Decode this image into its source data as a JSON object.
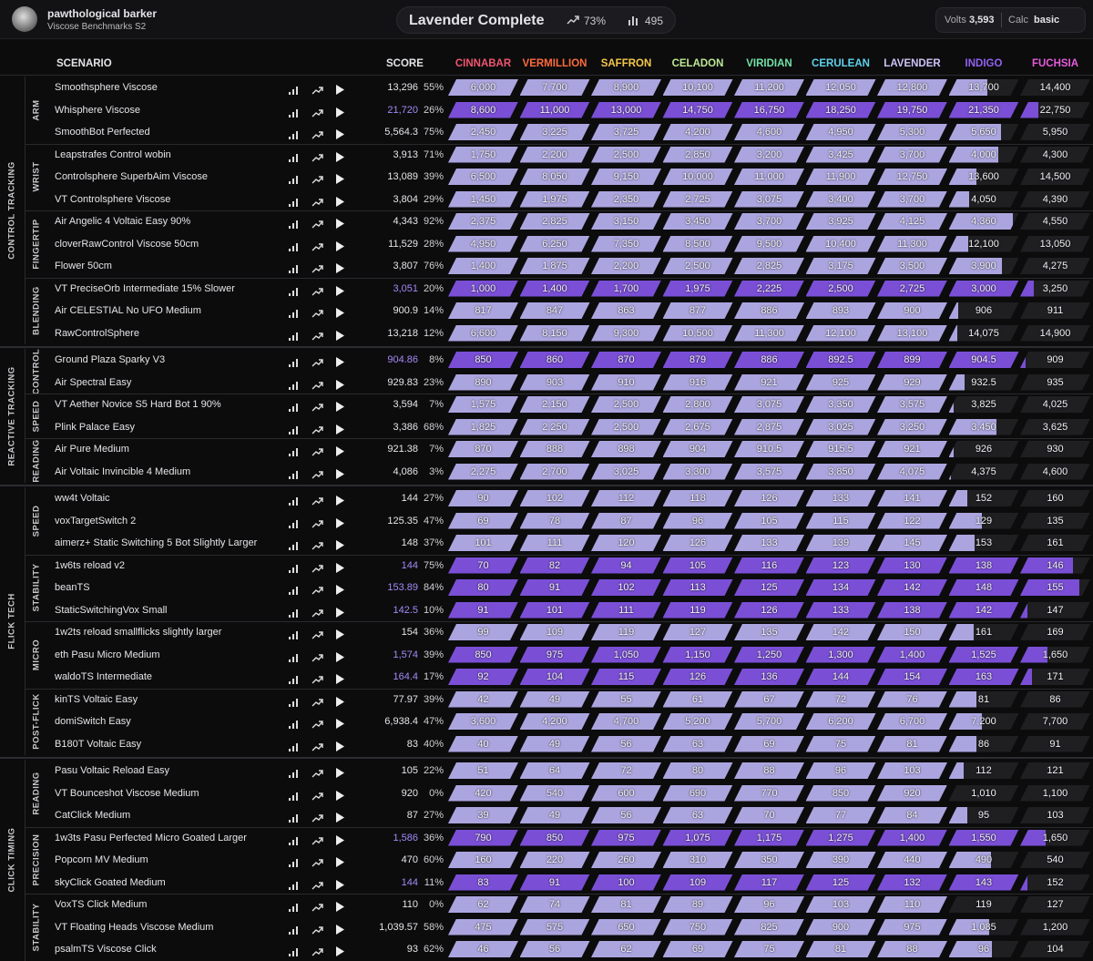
{
  "header": {
    "user_name": "pawthological barker",
    "benchmark": "Viscose Benchmarks S2",
    "status": "Lavender Complete",
    "progress": "73%",
    "energy": "495",
    "volts_label": "Volts",
    "volts": "3,593",
    "calc_label": "Calc",
    "calc": "basic"
  },
  "table": {
    "scenario_header": "SCENARIO",
    "score_header": "SCORE",
    "ranks": [
      {
        "name": "CINNABAR",
        "color": "#f0566e"
      },
      {
        "name": "VERMILLION",
        "color": "#ff6b3d"
      },
      {
        "name": "SAFFRON",
        "color": "#f5c84a"
      },
      {
        "name": "CELADON",
        "color": "#bde893"
      },
      {
        "name": "VIRIDIAN",
        "color": "#72e3a6"
      },
      {
        "name": "CERULEAN",
        "color": "#5fd3ec"
      },
      {
        "name": "LAVENDER",
        "color": "#cfc3f7"
      },
      {
        "name": "INDIGO",
        "color": "#9262f2"
      },
      {
        "name": "FUCHSIA",
        "color": "#e55cdb"
      }
    ],
    "categories": [
      {
        "name": "CONTROL TRACKING",
        "groups": [
          {
            "name": "ARM",
            "rows": [
              {
                "scenario": "Smoothsphere Viscose",
                "score": "13,296",
                "progress": "55%",
                "thresholds": [
                  "6,000",
                  "7,700",
                  "8,900",
                  "10,100",
                  "11,200",
                  "12,050",
                  "12,800",
                  "13,700",
                  "14,400"
                ]
              },
              {
                "scenario": "Whisphere Viscose",
                "score": "21,720",
                "progress": "26%",
                "thresholds": [
                  "8,600",
                  "11,000",
                  "13,000",
                  "14,750",
                  "16,750",
                  "18,250",
                  "19,750",
                  "21,350",
                  "22,750"
                ]
              },
              {
                "scenario": "SmoothBot Perfected",
                "score": "5,564.3",
                "progress": "75%",
                "thresholds": [
                  "2,450",
                  "3,225",
                  "3,725",
                  "4,200",
                  "4,600",
                  "4,950",
                  "5,300",
                  "5,650",
                  "5,950"
                ]
              }
            ]
          },
          {
            "name": "WRIST",
            "rows": [
              {
                "scenario": "Leapstrafes Control wobin",
                "score": "3,913",
                "progress": "71%",
                "thresholds": [
                  "1,750",
                  "2,200",
                  "2,500",
                  "2,850",
                  "3,200",
                  "3,425",
                  "3,700",
                  "4,000",
                  "4,300"
                ]
              },
              {
                "scenario": "Controlsphere SuperbAim Viscose",
                "score": "13,089",
                "progress": "39%",
                "thresholds": [
                  "6,500",
                  "8,050",
                  "9,150",
                  "10,000",
                  "11,000",
                  "11,900",
                  "12,750",
                  "13,600",
                  "14,500"
                ]
              },
              {
                "scenario": "VT Controlsphere Viscose",
                "score": "3,804",
                "progress": "29%",
                "thresholds": [
                  "1,450",
                  "1,975",
                  "2,350",
                  "2,725",
                  "3,075",
                  "3,400",
                  "3,700",
                  "4,050",
                  "4,390"
                ]
              }
            ]
          },
          {
            "name": "FINGERTIP",
            "rows": [
              {
                "scenario": "Air Angelic 4 Voltaic Easy 90%",
                "score": "4,343",
                "progress": "92%",
                "thresholds": [
                  "2,375",
                  "2,825",
                  "3,150",
                  "3,450",
                  "3,700",
                  "3,925",
                  "4,125",
                  "4,360",
                  "4,550"
                ]
              },
              {
                "scenario": "cloverRawControl Viscose 50cm",
                "score": "11,529",
                "progress": "28%",
                "thresholds": [
                  "4,950",
                  "6,250",
                  "7,350",
                  "8,500",
                  "9,500",
                  "10,400",
                  "11,300",
                  "12,100",
                  "13,050"
                ]
              },
              {
                "scenario": "Flower 50cm",
                "score": "3,807",
                "progress": "76%",
                "thresholds": [
                  "1,400",
                  "1,875",
                  "2,200",
                  "2,500",
                  "2,825",
                  "3,175",
                  "3,500",
                  "3,900",
                  "4,275"
                ]
              }
            ]
          },
          {
            "name": "BLENDING",
            "rows": [
              {
                "scenario": "VT PreciseOrb Intermediate 15% Slower",
                "score": "3,051",
                "progress": "20%",
                "thresholds": [
                  "1,000",
                  "1,400",
                  "1,700",
                  "1,975",
                  "2,225",
                  "2,500",
                  "2,725",
                  "3,000",
                  "3,250"
                ]
              },
              {
                "scenario": "Air CELESTIAL No UFO Medium",
                "score": "900.9",
                "progress": "14%",
                "thresholds": [
                  "817",
                  "847",
                  "863",
                  "877",
                  "886",
                  "893",
                  "900",
                  "906",
                  "911"
                ]
              },
              {
                "scenario": "RawControlSphere",
                "score": "13,218",
                "progress": "12%",
                "thresholds": [
                  "6,600",
                  "8,150",
                  "9,300",
                  "10,500",
                  "11,300",
                  "12,100",
                  "13,100",
                  "14,075",
                  "14,900"
                ]
              }
            ]
          }
        ]
      },
      {
        "name": "REACTIVE TRACKING",
        "groups": [
          {
            "name": "CONTROL",
            "rows": [
              {
                "scenario": "Ground Plaza Sparky V3",
                "score": "904.86",
                "progress": "8%",
                "thresholds": [
                  "850",
                  "860",
                  "870",
                  "879",
                  "886",
                  "892.5",
                  "899",
                  "904.5",
                  "909"
                ]
              },
              {
                "scenario": "Air Spectral Easy",
                "score": "929.83",
                "progress": "23%",
                "thresholds": [
                  "890",
                  "903",
                  "910",
                  "916",
                  "921",
                  "925",
                  "929",
                  "932.5",
                  "935"
                ]
              }
            ]
          },
          {
            "name": "SPEED",
            "rows": [
              {
                "scenario": "VT Aether Novice S5 Hard Bot 1 90%",
                "score": "3,594",
                "progress": "7%",
                "thresholds": [
                  "1,575",
                  "2,150",
                  "2,500",
                  "2,800",
                  "3,075",
                  "3,350",
                  "3,575",
                  "3,825",
                  "4,025"
                ]
              },
              {
                "scenario": "Plink Palace Easy",
                "score": "3,386",
                "progress": "68%",
                "thresholds": [
                  "1,825",
                  "2,250",
                  "2,500",
                  "2,675",
                  "2,875",
                  "3,025",
                  "3,250",
                  "3,450",
                  "3,625"
                ]
              }
            ]
          },
          {
            "name": "READING",
            "rows": [
              {
                "scenario": "Air Pure Medium",
                "score": "921.38",
                "progress": "7%",
                "thresholds": [
                  "870",
                  "888",
                  "898",
                  "904",
                  "910.5",
                  "915.5",
                  "921",
                  "926",
                  "930"
                ]
              },
              {
                "scenario": "Air Voltaic Invincible 4 Medium",
                "score": "4,086",
                "progress": "3%",
                "thresholds": [
                  "2,275",
                  "2,700",
                  "3,025",
                  "3,300",
                  "3,575",
                  "3,850",
                  "4,075",
                  "4,375",
                  "4,600"
                ]
              }
            ]
          }
        ]
      },
      {
        "name": "FLICK TECH",
        "groups": [
          {
            "name": "SPEED",
            "rows": [
              {
                "scenario": "ww4t Voltaic",
                "score": "144",
                "progress": "27%",
                "thresholds": [
                  "90",
                  "102",
                  "112",
                  "118",
                  "126",
                  "133",
                  "141",
                  "152",
                  "160"
                ]
              },
              {
                "scenario": "voxTargetSwitch 2",
                "score": "125.35",
                "progress": "47%",
                "thresholds": [
                  "69",
                  "78",
                  "87",
                  "96",
                  "105",
                  "115",
                  "122",
                  "129",
                  "135"
                ]
              },
              {
                "scenario": "aimerz+ Static Switching 5 Bot Slightly Larger",
                "score": "148",
                "progress": "37%",
                "thresholds": [
                  "101",
                  "111",
                  "120",
                  "126",
                  "133",
                  "139",
                  "145",
                  "153",
                  "161"
                ]
              }
            ]
          },
          {
            "name": "STABILITY",
            "rows": [
              {
                "scenario": "1w6ts reload v2",
                "score": "144",
                "progress": "75%",
                "thresholds": [
                  "70",
                  "82",
                  "94",
                  "105",
                  "116",
                  "123",
                  "130",
                  "138",
                  "146"
                ]
              },
              {
                "scenario": "beanTS",
                "score": "153.89",
                "progress": "84%",
                "thresholds": [
                  "80",
                  "91",
                  "102",
                  "113",
                  "125",
                  "134",
                  "142",
                  "148",
                  "155"
                ]
              },
              {
                "scenario": "StaticSwitchingVox Small",
                "score": "142.5",
                "progress": "10%",
                "thresholds": [
                  "91",
                  "101",
                  "111",
                  "119",
                  "126",
                  "133",
                  "138",
                  "142",
                  "147"
                ]
              }
            ]
          },
          {
            "name": "MICRO",
            "rows": [
              {
                "scenario": "1w2ts reload smallflicks slightly larger",
                "score": "154",
                "progress": "36%",
                "thresholds": [
                  "99",
                  "109",
                  "119",
                  "127",
                  "135",
                  "142",
                  "150",
                  "161",
                  "169"
                ]
              },
              {
                "scenario": "eth Pasu Micro Medium",
                "score": "1,574",
                "progress": "39%",
                "thresholds": [
                  "850",
                  "975",
                  "1,050",
                  "1,150",
                  "1,250",
                  "1,300",
                  "1,400",
                  "1,525",
                  "1,650"
                ]
              },
              {
                "scenario": "waldoTS Intermediate",
                "score": "164.4",
                "progress": "17%",
                "thresholds": [
                  "92",
                  "104",
                  "115",
                  "126",
                  "136",
                  "144",
                  "154",
                  "163",
                  "171"
                ]
              }
            ]
          },
          {
            "name": "POST-FLICK",
            "rows": [
              {
                "scenario": "kinTS Voltaic Easy",
                "score": "77.97",
                "progress": "39%",
                "thresholds": [
                  "42",
                  "49",
                  "55",
                  "61",
                  "67",
                  "72",
                  "76",
                  "81",
                  "86"
                ]
              },
              {
                "scenario": "domiSwitch Easy",
                "score": "6,938.4",
                "progress": "47%",
                "thresholds": [
                  "3,600",
                  "4,200",
                  "4,700",
                  "5,200",
                  "5,700",
                  "6,200",
                  "6,700",
                  "7,200",
                  "7,700"
                ]
              },
              {
                "scenario": "B180T Voltaic Easy",
                "score": "83",
                "progress": "40%",
                "thresholds": [
                  "40",
                  "49",
                  "56",
                  "63",
                  "69",
                  "75",
                  "81",
                  "86",
                  "91"
                ]
              }
            ]
          }
        ]
      },
      {
        "name": "CLICK TIMING",
        "groups": [
          {
            "name": "READING",
            "rows": [
              {
                "scenario": "Pasu Voltaic Reload Easy",
                "score": "105",
                "progress": "22%",
                "thresholds": [
                  "51",
                  "64",
                  "72",
                  "80",
                  "88",
                  "96",
                  "103",
                  "112",
                  "121"
                ]
              },
              {
                "scenario": "VT Bounceshot Viscose Medium",
                "score": "920",
                "progress": "0%",
                "thresholds": [
                  "420",
                  "540",
                  "600",
                  "690",
                  "770",
                  "850",
                  "920",
                  "1,010",
                  "1,100"
                ]
              },
              {
                "scenario": "CatClick Medium",
                "score": "87",
                "progress": "27%",
                "thresholds": [
                  "39",
                  "49",
                  "56",
                  "63",
                  "70",
                  "77",
                  "84",
                  "95",
                  "103"
                ]
              }
            ]
          },
          {
            "name": "PRECISION",
            "rows": [
              {
                "scenario": "1w3ts Pasu Perfected Micro Goated Larger",
                "score": "1,586",
                "progress": "36%",
                "thresholds": [
                  "790",
                  "850",
                  "975",
                  "1,075",
                  "1,175",
                  "1,275",
                  "1,400",
                  "1,550",
                  "1,650"
                ]
              },
              {
                "scenario": "Popcorn MV Medium",
                "score": "470",
                "progress": "60%",
                "thresholds": [
                  "160",
                  "220",
                  "260",
                  "310",
                  "350",
                  "390",
                  "440",
                  "490",
                  "540"
                ]
              },
              {
                "scenario": "skyClick Goated Medium",
                "score": "144",
                "progress": "11%",
                "thresholds": [
                  "83",
                  "91",
                  "100",
                  "109",
                  "117",
                  "125",
                  "132",
                  "143",
                  "152"
                ]
              }
            ]
          },
          {
            "name": "STABILITY",
            "rows": [
              {
                "scenario": "VoxTS Click Medium",
                "score": "110",
                "progress": "0%",
                "thresholds": [
                  "62",
                  "74",
                  "81",
                  "89",
                  "96",
                  "103",
                  "110",
                  "119",
                  "127"
                ]
              },
              {
                "scenario": "VT Floating Heads Viscose Medium",
                "score": "1,039.57",
                "progress": "58%",
                "thresholds": [
                  "475",
                  "575",
                  "650",
                  "750",
                  "825",
                  "900",
                  "975",
                  "1,085",
                  "1,200"
                ]
              },
              {
                "scenario": "psalmTS Viscose Click",
                "score": "93",
                "progress": "62%",
                "thresholds": [
                  "46",
                  "56",
                  "62",
                  "69",
                  "75",
                  "81",
                  "88",
                  "96",
                  "104"
                ]
              }
            ]
          }
        ]
      }
    ]
  }
}
